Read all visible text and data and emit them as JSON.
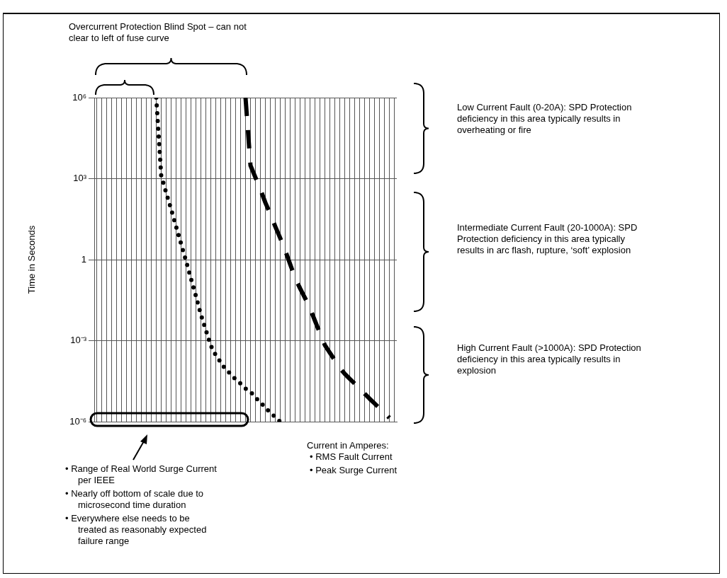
{
  "chart_data": {
    "type": "line",
    "ylabel": "Time in Seconds",
    "xlabel": "Current in Amperes:",
    "categories": [
      null,
      null,
      null,
      null,
      null,
      null,
      null,
      null,
      null,
      null,
      null,
      null,
      null,
      null,
      null,
      null,
      null,
      null,
      null,
      null,
      null,
      null,
      null,
      null,
      null,
      null,
      null,
      null,
      null,
      null,
      null,
      null,
      null,
      null,
      null,
      null,
      null,
      null,
      null,
      null,
      null,
      null,
      null,
      null,
      null,
      null,
      null,
      null,
      null,
      null,
      null,
      null,
      null,
      null,
      null,
      null,
      null,
      null,
      null,
      null,
      null
    ],
    "series": [
      {
        "color": "#000000",
        "line_style": "dotted",
        "values": [
          null,
          null,
          null,
          null,
          null,
          null,
          null,
          null,
          null,
          null,
          null,
          null,
          1000000,
          1300,
          300,
          74,
          17,
          3.9,
          0.91,
          0.2,
          0.045,
          0.0093,
          0.0025,
          0.00066,
          0.00029,
          0.00016,
          8.5e-05,
          6e-05,
          3.7e-05,
          2.6e-05,
          1.7e-05,
          1.3e-05,
          7.8e-06,
          5.4e-06,
          3.3e-06,
          2.2e-06,
          1.5e-06,
          1e-06,
          null,
          null,
          null,
          null,
          null,
          null,
          null,
          null,
          null,
          null,
          null,
          null,
          null,
          null,
          null,
          null,
          null,
          null,
          null,
          null,
          null,
          null,
          null
        ]
      },
      {
        "color": "#000000",
        "line_style": "dashed",
        "values": [
          null,
          null,
          null,
          null,
          null,
          null,
          null,
          null,
          null,
          null,
          null,
          null,
          null,
          null,
          null,
          null,
          null,
          null,
          null,
          null,
          null,
          null,
          null,
          null,
          null,
          null,
          null,
          null,
          null,
          null,
          1000000,
          3100,
          1100,
          400,
          130,
          49,
          17,
          6.3,
          2.2,
          0.68,
          0.21,
          0.087,
          0.038,
          0.016,
          0.0055,
          0.0019,
          0.00069,
          0.00036,
          0.00019,
          9.8e-05,
          6e-05,
          3.9e-05,
          2.6e-05,
          1.7e-05,
          1.1e-05,
          7.2e-06,
          4.8e-06,
          3.2e-06,
          2.2e-06,
          1.4e-06,
          null
        ]
      }
    ],
    "log": "y",
    "ylim": [
      1e-06,
      1000000
    ],
    "yticks": [
      {
        "value": 1000000,
        "label": "10⁶"
      },
      {
        "value": 1000,
        "label": "10³"
      },
      1,
      {
        "value": 0.001,
        "label": "10⁻³"
      },
      {
        "value": 1e-06,
        "label": "10⁻⁶"
      }
    ],
    "grid": true,
    "legend": false,
    "marker": "none",
    "tick_labels": "y",
    "annotations": [
      "Overcurrent Protection Blind Spot – can not clear to left of fuse curve",
      "Low Current Fault (0-20A): SPD Protection deficiency in this area typically results in overheating or fire",
      "Intermediate Current Fault (20-1000A): SPD Protection deficiency in this area typically results in arc flash, rupture, ‘soft’ explosion",
      "High Current Fault (>1000A): SPD Protection deficiency in this area typically results in explosion",
      "•   Range of Real World Surge Current per IEEE",
      "•   Nearly off bottom of scale due to microsecond time duration",
      "•   Everywhere else needs to be treated as reasonably expected failure range",
      "•   RMS Fault Current",
      "•   Peak Surge Current"
    ]
  }
}
